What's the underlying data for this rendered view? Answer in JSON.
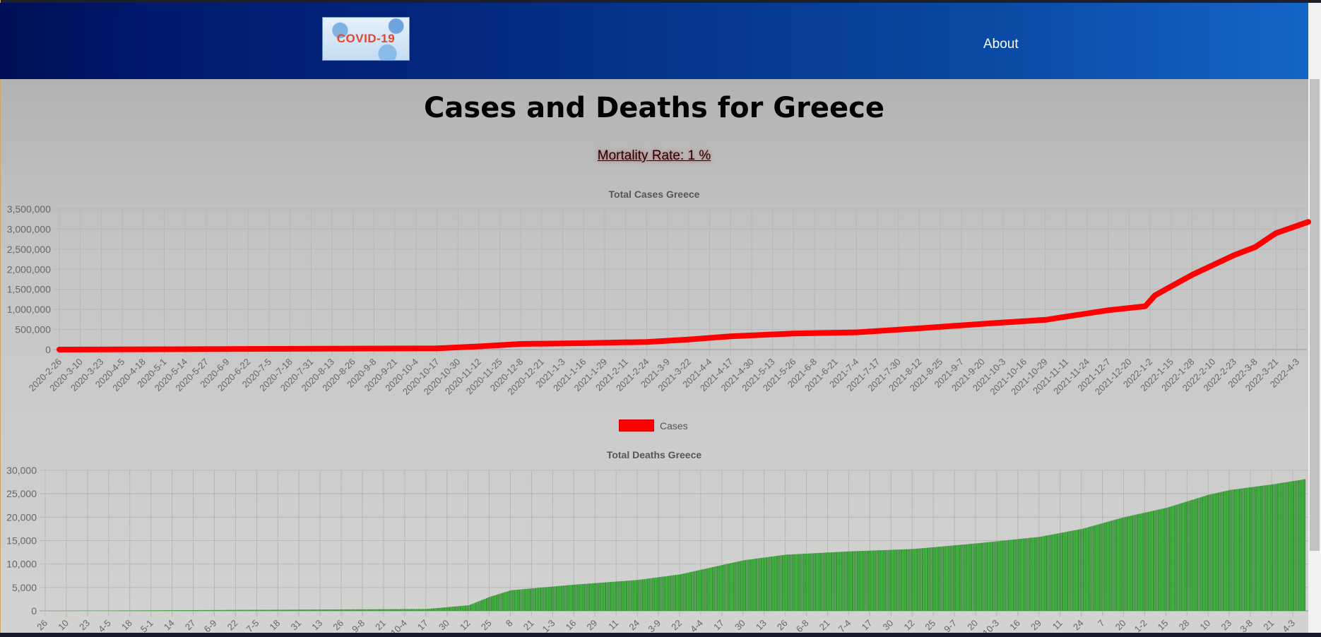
{
  "nav": {
    "logo_text": "COVID-19",
    "about_label": "About"
  },
  "page": {
    "title": "Cases and Deaths for Greece",
    "mortality": "Mortality Rate: 1 %"
  },
  "colors": {
    "cases_line": "#ff0000",
    "deaths_bar": "#2e9a2e",
    "nav_start": "#000f55",
    "nav_end": "#1565c8"
  },
  "chart_data": [
    {
      "type": "line",
      "title": "Total Cases Greece",
      "series": [
        {
          "name": "Cases"
        }
      ],
      "legend": "bottom",
      "grid": true,
      "ylim": [
        0,
        3500000
      ],
      "yticks": [
        "0",
        "500,000",
        "1,000,000",
        "1,500,000",
        "2,000,000",
        "2,500,000",
        "3,000,000",
        "3,500,000"
      ],
      "xticks": [
        "2020-2-26",
        "2020-3-10",
        "2020-3-23",
        "2020-4-5",
        "2020-4-18",
        "2020-5-1",
        "2020-5-14",
        "2020-5-27",
        "2020-6-9",
        "2020-6-22",
        "2020-7-5",
        "2020-7-18",
        "2020-7-31",
        "2020-8-13",
        "2020-8-26",
        "2020-9-8",
        "2020-9-21",
        "2020-10-4",
        "2020-10-17",
        "2020-10-30",
        "2020-11-12",
        "2020-11-25",
        "2020-12-8",
        "2020-12-21",
        "2021-1-3",
        "2021-1-16",
        "2021-1-29",
        "2021-2-11",
        "2021-2-24",
        "2021-3-9",
        "2021-3-22",
        "2021-4-4",
        "2021-4-17",
        "2021-4-30",
        "2021-5-13",
        "2021-5-26",
        "2021-6-8",
        "2021-6-21",
        "2021-7-4",
        "2021-7-17",
        "2021-7-30",
        "2021-8-12",
        "2021-8-25",
        "2021-9-7",
        "2021-9-20",
        "2021-10-3",
        "2021-10-16",
        "2021-10-29",
        "2021-11-11",
        "2021-11-24",
        "2021-12-7",
        "2021-12-20",
        "2022-1-2",
        "2022-1-15",
        "2022-1-28",
        "2022-2-10",
        "2022-2-23",
        "2022-3-8",
        "2022-3-21",
        "2022-4-3"
      ],
      "x": [
        "2020-2-26",
        "2020-10-17",
        "2020-11-12",
        "2020-12-8",
        "2021-1-16",
        "2021-2-24",
        "2021-3-22",
        "2021-4-17",
        "2021-5-26",
        "2021-7-4",
        "2021-8-12",
        "2021-9-20",
        "2021-10-29",
        "2021-12-7",
        "2021-12-30",
        "2022-1-5",
        "2022-1-28",
        "2022-2-23",
        "2022-3-8",
        "2022-3-21",
        "2022-4-10"
      ],
      "values": [
        0,
        30000,
        80000,
        140000,
        160000,
        190000,
        250000,
        330000,
        400000,
        430000,
        530000,
        640000,
        740000,
        980000,
        1080000,
        1350000,
        1860000,
        2350000,
        2550000,
        2900000,
        3180000
      ]
    },
    {
      "type": "bar",
      "title": "Total Deaths Greece",
      "grid": true,
      "ylim": [
        0,
        30000
      ],
      "yticks": [
        "0",
        "5,000",
        "10,000",
        "15,000",
        "20,000",
        "25,000",
        "30,000"
      ],
      "xticks": [
        "26",
        "10",
        "23",
        "4-5",
        "18",
        "5-1",
        "14",
        "27",
        "6-9",
        "22",
        "7-5",
        "18",
        "31",
        "13",
        "26",
        "9-8",
        "21",
        "10-4",
        "17",
        "30",
        "12",
        "25",
        "8",
        "21",
        "1-3",
        "16",
        "29",
        "11",
        "24",
        "3-9",
        "22",
        "4-4",
        "17",
        "30",
        "13",
        "26",
        "6-8",
        "21",
        "7-4",
        "17",
        "30",
        "12",
        "25",
        "9-7",
        "20",
        "10-3",
        "16",
        "29",
        "11",
        "24",
        "7",
        "20",
        "1-2",
        "15",
        "28",
        "10",
        "23",
        "3-8",
        "21",
        "4-3"
      ],
      "x": [
        "2020-2-26",
        "2020-10-17",
        "2020-11-12",
        "2020-11-25",
        "2020-12-8",
        "2021-1-16",
        "2021-2-24",
        "2021-3-22",
        "2021-4-30",
        "2021-5-26",
        "2021-7-4",
        "2021-8-12",
        "2021-9-20",
        "2021-10-29",
        "2021-11-24",
        "2021-12-20",
        "2022-1-15",
        "2022-2-10",
        "2022-2-23",
        "2022-3-21",
        "2022-4-10"
      ],
      "values": [
        0,
        400,
        1200,
        3000,
        4400,
        5600,
        6600,
        7800,
        10800,
        12000,
        12700,
        13200,
        14400,
        15800,
        17500,
        20000,
        22000,
        24800,
        25800,
        27000,
        28100
      ]
    }
  ]
}
